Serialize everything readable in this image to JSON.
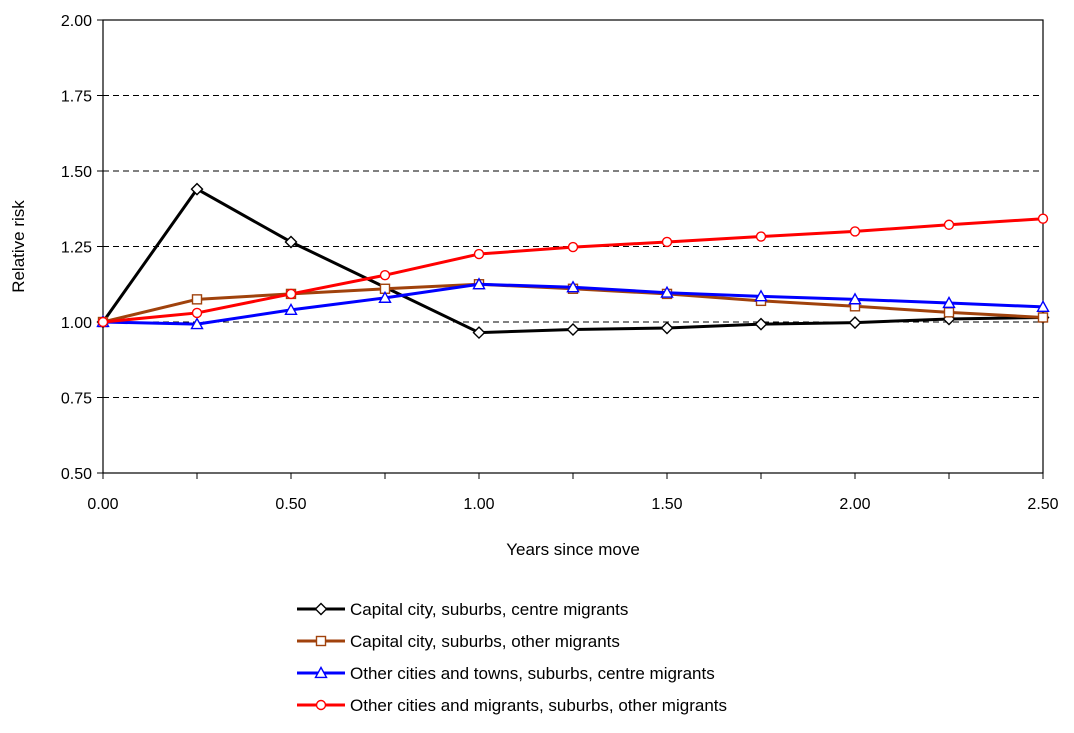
{
  "chart_data": {
    "type": "line",
    "xlabel": "Years since move",
    "ylabel": "Relative risk",
    "xlim": [
      0,
      2.5
    ],
    "ylim": [
      0.5,
      2.0
    ],
    "x_ticks": [
      "0.00",
      "0.50",
      "1.00",
      "1.50",
      "2.00",
      "2.50"
    ],
    "y_ticks": [
      "0.50",
      "0.75",
      "1.00",
      "1.25",
      "1.50",
      "1.75",
      "2.00"
    ],
    "grid": "horizontal dashed",
    "legend_position": "bottom",
    "x": [
      0,
      0.25,
      0.5,
      0.75,
      1.0,
      1.25,
      1.5,
      1.75,
      2.0,
      2.25,
      2.5
    ],
    "series": [
      {
        "name": "Capital city, suburbs, centre migrants",
        "color": "#000000",
        "marker": "diamond",
        "x": [
          0,
          0.25,
          0.5,
          1.0,
          1.25,
          1.5,
          1.75,
          2.0,
          2.25,
          2.5
        ],
        "values": [
          1.0,
          1.44,
          1.265,
          0.965,
          0.975,
          0.98,
          0.993,
          0.998,
          1.01,
          1.015
        ]
      },
      {
        "name": "Capital city, suburbs, other migrants",
        "color": "#a0420c",
        "marker": "square",
        "x": [
          0,
          0.25,
          0.5,
          0.75,
          1.0,
          1.25,
          1.5,
          1.75,
          2.0,
          2.25,
          2.5
        ],
        "values": [
          1.0,
          1.075,
          1.093,
          1.11,
          1.125,
          1.11,
          1.093,
          1.07,
          1.052,
          1.032,
          1.015
        ]
      },
      {
        "name": "Other cities and towns, suburbs, centre migrants",
        "color": "#0000ff",
        "marker": "triangle",
        "x": [
          0,
          0.25,
          0.5,
          0.75,
          1.0,
          1.25,
          1.5,
          1.75,
          2.0,
          2.25,
          2.5
        ],
        "values": [
          1.0,
          0.993,
          1.04,
          1.08,
          1.125,
          1.115,
          1.097,
          1.085,
          1.075,
          1.063,
          1.05
        ]
      },
      {
        "name": "Other cities and migrants, suburbs, other migrants",
        "color": "#ff0000",
        "marker": "circle",
        "x": [
          0,
          0.25,
          0.5,
          0.75,
          1.0,
          1.25,
          1.5,
          1.75,
          2.0,
          2.25,
          2.5
        ],
        "values": [
          1.0,
          1.03,
          1.093,
          1.155,
          1.225,
          1.248,
          1.265,
          1.283,
          1.3,
          1.322,
          1.342
        ]
      }
    ]
  }
}
